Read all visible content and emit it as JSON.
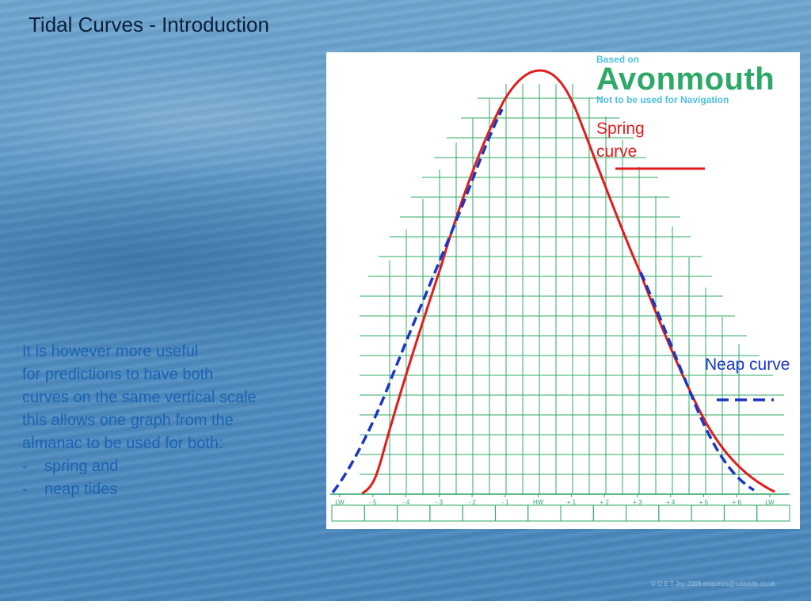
{
  "slide": {
    "title": "Tidal Curves - Introduction",
    "body_lines": [
      "It is however more useful",
      "for predictions to have both",
      "curves on the same vertical scale",
      "this allows one graph from the",
      "almanac to be used for both:"
    ],
    "bullets": [
      {
        "marker": "-",
        "text": "spring and"
      },
      {
        "marker": "-",
        "text": "neap tides"
      }
    ],
    "copyright": "© O E T Joy 2008 enquiries@sailskills.co.uk"
  },
  "graph": {
    "based_on": "Based on",
    "location": "Avonmouth",
    "warning": "Not to be used for Navigation",
    "spring_label": "Spring curve",
    "neap_label": "Neap curve",
    "x_ticks": [
      "LW",
      "- 5",
      "- 4",
      "- 3",
      "- 2",
      "- 1",
      "HW",
      "+ 1",
      "+ 2",
      "+ 3",
      "+ 4",
      "+ 5",
      "+ 6",
      "LW"
    ]
  },
  "colors": {
    "grid": "#2ea866",
    "spring_curve": "#e21b1b",
    "neap_curve": "#1a36c8",
    "body_text": "#1c63b3"
  }
}
